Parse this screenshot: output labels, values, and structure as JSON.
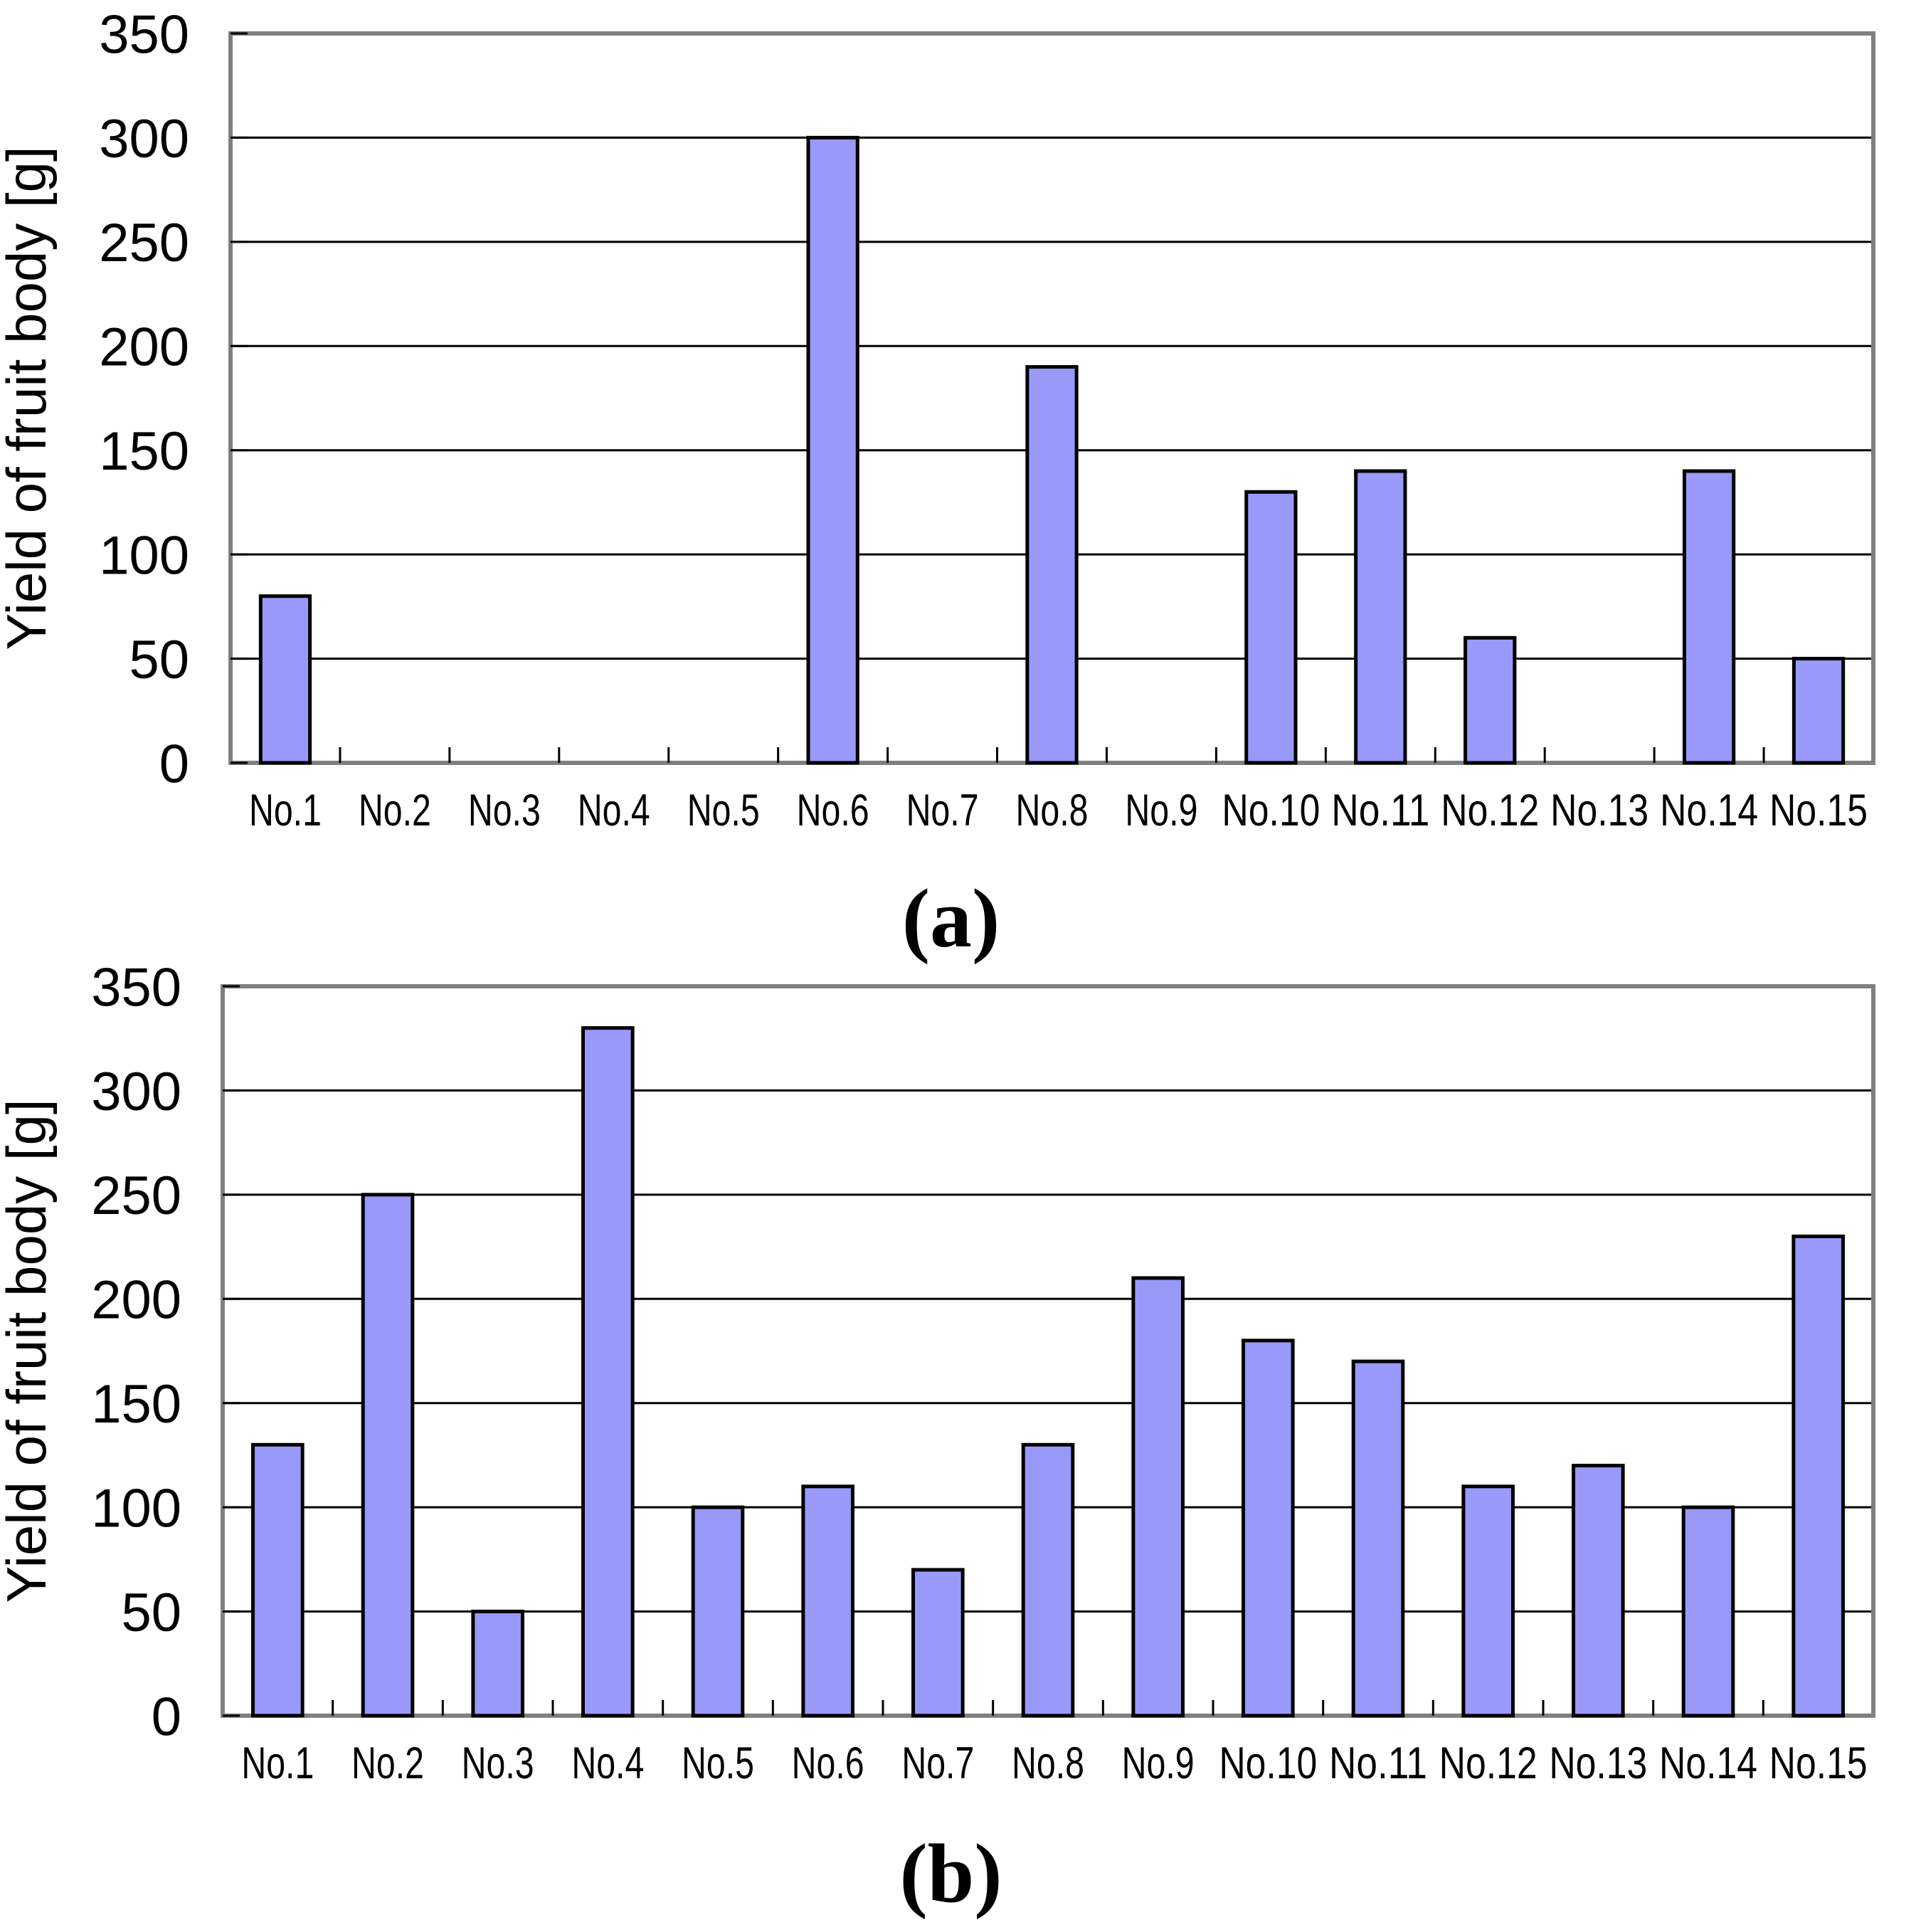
{
  "figure": {
    "background": "#ffffff",
    "colors": {
      "bar_fill": "#9999fa",
      "bar_stroke": "#000000",
      "gridline": "#000000",
      "frame": "#808080",
      "text": "#000000"
    }
  },
  "chart_data": [
    {
      "id": "a",
      "type": "bar",
      "caption": "(a)",
      "ylabel": "Yield of fruit body [g]",
      "xlabel": "",
      "ylim": [
        0,
        350
      ],
      "ytick_step": 50,
      "ytick_labels": [
        "0",
        "50",
        "100",
        "150",
        "200",
        "250",
        "300",
        "350"
      ],
      "grid": true,
      "legend": "none",
      "categories": [
        "No.1",
        "No.2",
        "No.3",
        "No.4",
        "No.5",
        "No.6",
        "No.7",
        "No.8",
        "No.9",
        "No.10",
        "No.11",
        "No.12",
        "No.13",
        "No.14",
        "No.15"
      ],
      "values": [
        80,
        0,
        0,
        0,
        0,
        300,
        0,
        190,
        0,
        130,
        140,
        60,
        0,
        140,
        50
      ]
    },
    {
      "id": "b",
      "type": "bar",
      "caption": "(b)",
      "ylabel": "Yield of fruit body [g]",
      "xlabel": "",
      "ylim": [
        0,
        350
      ],
      "ytick_step": 50,
      "ytick_labels": [
        "0",
        "50",
        "100",
        "150",
        "200",
        "250",
        "300",
        "350"
      ],
      "grid": true,
      "legend": "none",
      "categories": [
        "No.1",
        "No.2",
        "No.3",
        "No.4",
        "No.5",
        "No.6",
        "No.7",
        "No.8",
        "No.9",
        "No.10",
        "No.11",
        "No.12",
        "No.13",
        "No.14",
        "No.15"
      ],
      "values": [
        130,
        250,
        50,
        330,
        100,
        110,
        70,
        130,
        210,
        180,
        170,
        110,
        120,
        100,
        230
      ]
    }
  ]
}
